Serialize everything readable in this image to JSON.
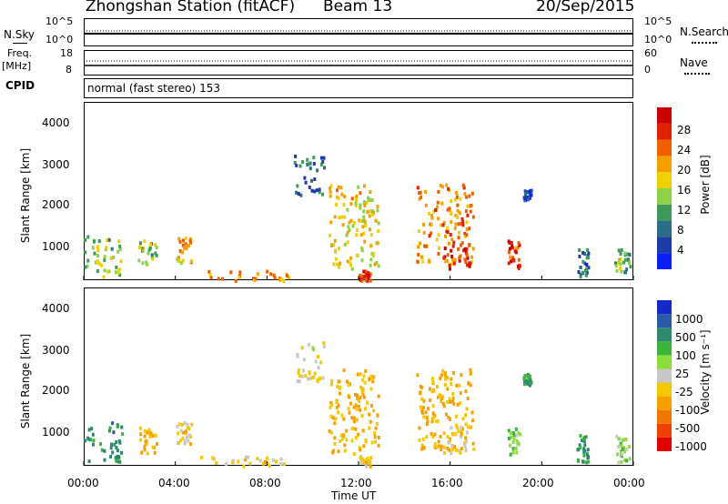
{
  "header": {
    "station": "Zhongshan Station (fitACF)",
    "beam": "Beam 13",
    "date": "20/Sep/2015"
  },
  "strip": {
    "nsky_label": "N.Sky",
    "nsky_ticks": [
      "10^5",
      "10^0"
    ],
    "nsearch_label": "N.Search",
    "nsearch_ticks": [
      "10^5",
      "10^0"
    ],
    "freq_label": "Freq.",
    "freq_unit": "[MHz]",
    "freq_ticks": [
      "18",
      "8"
    ],
    "nave_label": "Nave",
    "nave_ticks": [
      "60",
      "0"
    ],
    "cpid_label": "CPID",
    "cpid_text": "normal (fast stereo) 153"
  },
  "panels": {
    "ylabel": "Slant Range [km]",
    "yticks": [
      "1000",
      "2000",
      "3000",
      "4000"
    ],
    "xticks": [
      "00:00",
      "04:00",
      "08:00",
      "12:00",
      "16:00",
      "20:00",
      "00:00"
    ],
    "xlabel": "Time UT"
  },
  "power_scale": {
    "label": "Power [dB]",
    "ticks": [
      "4",
      "8",
      "12",
      "16",
      "20",
      "24",
      "28"
    ],
    "colors": [
      "#0a1ef5",
      "#1e3ca8",
      "#2a6e8a",
      "#3c9a5a",
      "#8fd14a",
      "#f0d000",
      "#f5a000",
      "#f06000",
      "#e02000",
      "#c80000"
    ]
  },
  "velocity_scale": {
    "label": "Velocity [m s⁻¹]",
    "ticks": [
      "1000",
      "500",
      "100",
      "25",
      "-25",
      "-100",
      "-500",
      "-1000"
    ],
    "colors": [
      "#1428c8",
      "#2a5aa8",
      "#2e8a6e",
      "#3cb43c",
      "#8cdc3c",
      "#c8c8c8",
      "#f5c800",
      "#f5a000",
      "#f07800",
      "#f04000",
      "#e00000"
    ]
  },
  "chart_data": [
    {
      "type": "heatmap",
      "title": "",
      "xlabel": "Time UT",
      "ylabel": "Slant Range [km]",
      "xlim": [
        "00:00",
        "00:00"
      ],
      "ylim": [
        180,
        4600
      ],
      "colorbar": "Power [dB]",
      "colorbar_range": [
        0,
        32
      ],
      "scatter_regions": [
        {
          "time_start": "00:00",
          "time_end": "01:40",
          "range_km": [
            300,
            1300
          ],
          "power_dB": 14
        },
        {
          "time_start": "02:20",
          "time_end": "03:10",
          "range_km": [
            500,
            1200
          ],
          "power_dB": 14
        },
        {
          "time_start": "04:00",
          "time_end": "04:40",
          "range_km": [
            650,
            1300
          ],
          "power_dB": 20
        },
        {
          "time_start": "05:00",
          "time_end": "09:00",
          "range_km": [
            200,
            450
          ],
          "power_dB": 22
        },
        {
          "time_start": "09:10",
          "time_end": "10:30",
          "range_km": [
            2300,
            3300
          ],
          "power_dB": 8
        },
        {
          "time_start": "10:40",
          "time_end": "12:50",
          "range_km": [
            500,
            2600
          ],
          "power_dB": 18
        },
        {
          "time_start": "12:00",
          "time_end": "12:30",
          "range_km": [
            200,
            450
          ],
          "power_dB": 28
        },
        {
          "time_start": "14:30",
          "time_end": "17:00",
          "range_km": [
            600,
            2600
          ],
          "power_dB": 22
        },
        {
          "time_start": "15:40",
          "time_end": "16:50",
          "range_km": [
            500,
            1200
          ],
          "power_dB": 28
        },
        {
          "time_start": "18:30",
          "time_end": "19:00",
          "range_km": [
            500,
            1200
          ],
          "power_dB": 26
        },
        {
          "time_start": "19:10",
          "time_end": "19:30",
          "range_km": [
            2200,
            2500
          ],
          "power_dB": 6
        },
        {
          "time_start": "21:30",
          "time_end": "22:00",
          "range_km": [
            300,
            1000
          ],
          "power_dB": 8
        },
        {
          "time_start": "23:10",
          "time_end": "23:50",
          "range_km": [
            300,
            1000
          ],
          "power_dB": 12
        }
      ]
    },
    {
      "type": "heatmap",
      "title": "",
      "xlabel": "Time UT",
      "ylabel": "Slant Range [km]",
      "xlim": [
        "00:00",
        "00:00"
      ],
      "ylim": [
        180,
        4600
      ],
      "colorbar": "Velocity [m s⁻¹]",
      "colorbar_range": [
        -1000,
        1000
      ],
      "scatter_regions": [
        {
          "time_start": "00:00",
          "time_end": "01:40",
          "range_km": [
            300,
            1300
          ],
          "velocity_ms": 500
        },
        {
          "time_start": "02:20",
          "time_end": "03:10",
          "range_km": [
            500,
            1200
          ],
          "velocity_ms": -300
        },
        {
          "time_start": "04:00",
          "time_end": "04:40",
          "range_km": [
            650,
            1300
          ],
          "velocity_ms": -150
        },
        {
          "time_start": "05:00",
          "time_end": "09:00",
          "range_km": [
            200,
            450
          ],
          "velocity_ms": -150
        },
        {
          "time_start": "09:10",
          "time_end": "10:30",
          "range_km": [
            2300,
            3300
          ],
          "velocity_ms": -50
        },
        {
          "time_start": "10:40",
          "time_end": "12:50",
          "range_km": [
            500,
            2600
          ],
          "velocity_ms": -300
        },
        {
          "time_start": "12:00",
          "time_end": "12:30",
          "range_km": [
            200,
            450
          ],
          "velocity_ms": -150
        },
        {
          "time_start": "14:30",
          "time_end": "17:00",
          "range_km": [
            600,
            2600
          ],
          "velocity_ms": -300
        },
        {
          "time_start": "15:40",
          "time_end": "16:50",
          "range_km": [
            500,
            1200
          ],
          "velocity_ms": -150
        },
        {
          "time_start": "18:30",
          "time_end": "19:00",
          "range_km": [
            500,
            1200
          ],
          "velocity_ms": 200
        },
        {
          "time_start": "19:10",
          "time_end": "19:30",
          "range_km": [
            2200,
            2500
          ],
          "velocity_ms": 500
        },
        {
          "time_start": "21:30",
          "time_end": "22:00",
          "range_km": [
            300,
            1000
          ],
          "velocity_ms": 500
        },
        {
          "time_start": "23:10",
          "time_end": "23:50",
          "range_km": [
            300,
            1000
          ],
          "velocity_ms": 200
        }
      ]
    }
  ]
}
